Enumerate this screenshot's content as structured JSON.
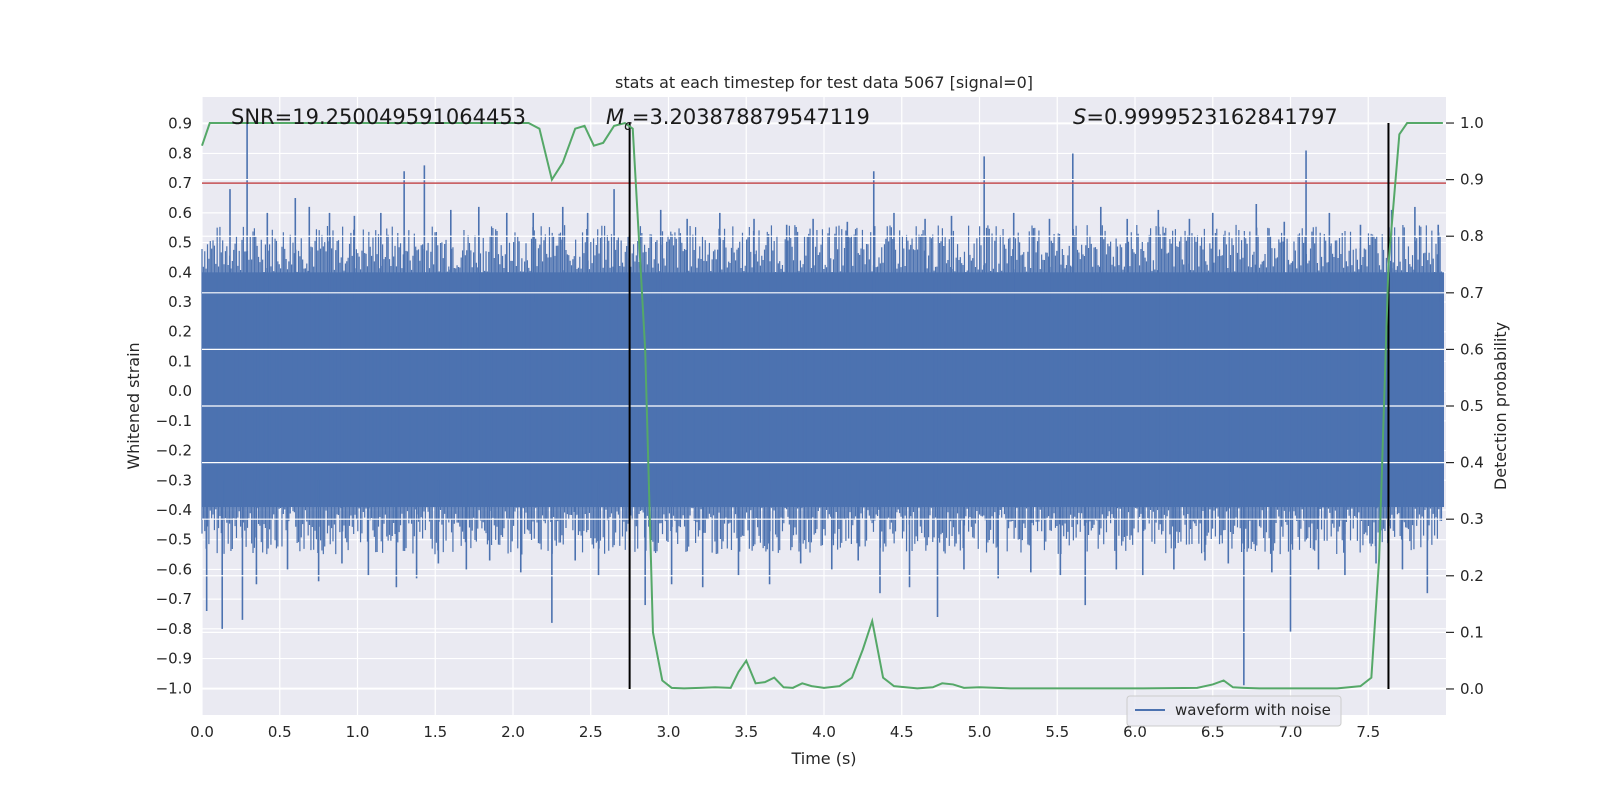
{
  "chart_data": {
    "type": "line",
    "title": "stats at each timestep for test data 5067 [signal=0]",
    "xlabel": "Time (s)",
    "ylabel": "Whitened strain",
    "y2label": "Detection probability",
    "xlim": [
      0.0,
      8.0
    ],
    "ylim": [
      -1.09,
      0.99
    ],
    "y2lim": [
      -0.046,
      1.046
    ],
    "x_ticks": [
      0.0,
      0.5,
      1.0,
      1.5,
      2.0,
      2.5,
      3.0,
      3.5,
      4.0,
      4.5,
      5.0,
      5.5,
      6.0,
      6.5,
      7.0,
      7.5
    ],
    "x_tick_labels": [
      "0.0",
      "0.5",
      "1.0",
      "1.5",
      "2.0",
      "2.5",
      "3.0",
      "3.5",
      "4.0",
      "4.5",
      "5.0",
      "5.5",
      "6.0",
      "6.5",
      "7.0",
      "7.5"
    ],
    "y_ticks": [
      0.9,
      0.8,
      0.7,
      0.6,
      0.5,
      0.4,
      0.3,
      0.2,
      0.1,
      0.0,
      -0.1,
      -0.2,
      -0.3,
      -0.4,
      -0.5,
      -0.6,
      -0.7,
      -0.8,
      -0.9,
      -1.0
    ],
    "y_tick_labels": [
      "0.9",
      "0.8",
      "0.7",
      "0.6",
      "0.5",
      "0.4",
      "0.3",
      "0.2",
      "0.1",
      "0.0",
      "−0.1",
      "−0.2",
      "−0.3",
      "−0.4",
      "−0.5",
      "−0.6",
      "−0.7",
      "−0.8",
      "−0.9",
      "−1.0"
    ],
    "y2_ticks": [
      1.0,
      0.9,
      0.8,
      0.7,
      0.6,
      0.5,
      0.4,
      0.3,
      0.2,
      0.1,
      0.0
    ],
    "y2_tick_labels": [
      "1.0",
      "0.9",
      "0.8",
      "0.7",
      "0.6",
      "0.5",
      "0.4",
      "0.3",
      "0.2",
      "0.1",
      "0.0"
    ],
    "grid": true,
    "legend": {
      "location": "lower-right",
      "entries": [
        "waveform with noise"
      ]
    },
    "annotations": [
      {
        "prefix": "SNR=",
        "value": "19.250049591064453"
      },
      {
        "prefix": "M",
        "subscript": "c",
        "suffix": "=",
        "value": "3.203878879547119"
      },
      {
        "prefix": "S",
        "suffix": "=",
        "value": "0.9999523162841797"
      }
    ],
    "threshold_line": {
      "y": 0.7,
      "color": "#c44e52"
    },
    "vertical_lines": [
      2.75,
      7.63
    ],
    "waveform": {
      "name": "waveform with noise",
      "color": "#4c72b0",
      "band_low": -0.39,
      "band_high": 0.4,
      "spikes": [
        [
          0.03,
          -0.74
        ],
        [
          0.13,
          -0.8
        ],
        [
          0.18,
          0.68
        ],
        [
          0.26,
          -0.77
        ],
        [
          0.29,
          0.9
        ],
        [
          0.35,
          -0.65
        ],
        [
          0.42,
          0.6
        ],
        [
          0.55,
          -0.6
        ],
        [
          0.6,
          0.65
        ],
        [
          0.69,
          0.62
        ],
        [
          0.75,
          -0.64
        ],
        [
          0.82,
          0.6
        ],
        [
          0.9,
          -0.58
        ],
        [
          0.98,
          0.59
        ],
        [
          1.07,
          -0.62
        ],
        [
          1.15,
          0.6
        ],
        [
          1.25,
          -0.66
        ],
        [
          1.3,
          0.74
        ],
        [
          1.38,
          -0.63
        ],
        [
          1.43,
          0.76
        ],
        [
          1.52,
          -0.58
        ],
        [
          1.6,
          0.61
        ],
        [
          1.7,
          -0.6
        ],
        [
          1.78,
          0.62
        ],
        [
          1.85,
          -0.57
        ],
        [
          1.96,
          0.6
        ],
        [
          2.05,
          -0.61
        ],
        [
          2.13,
          0.6
        ],
        [
          2.25,
          -0.78
        ],
        [
          2.32,
          0.62
        ],
        [
          2.4,
          -0.57
        ],
        [
          2.48,
          0.6
        ],
        [
          2.55,
          -0.62
        ],
        [
          2.65,
          0.68
        ],
        [
          2.85,
          -0.72
        ],
        [
          2.95,
          0.61
        ],
        [
          3.02,
          -0.65
        ],
        [
          3.12,
          0.58
        ],
        [
          3.22,
          -0.66
        ],
        [
          3.33,
          0.6
        ],
        [
          3.45,
          -0.62
        ],
        [
          3.55,
          0.58
        ],
        [
          3.65,
          -0.65
        ],
        [
          3.76,
          0.56
        ],
        [
          3.85,
          -0.58
        ],
        [
          3.93,
          0.58
        ],
        [
          4.05,
          -0.6
        ],
        [
          4.15,
          0.57
        ],
        [
          4.22,
          -0.57
        ],
        [
          4.32,
          0.74
        ],
        [
          4.36,
          -0.68
        ],
        [
          4.45,
          0.6
        ],
        [
          4.55,
          -0.66
        ],
        [
          4.65,
          0.58
        ],
        [
          4.73,
          -0.76
        ],
        [
          4.82,
          0.59
        ],
        [
          4.9,
          -0.6
        ],
        [
          5.03,
          0.79
        ],
        [
          5.12,
          -0.63
        ],
        [
          5.22,
          0.6
        ],
        [
          5.33,
          -0.61
        ],
        [
          5.45,
          0.58
        ],
        [
          5.52,
          -0.62
        ],
        [
          5.6,
          0.8
        ],
        [
          5.68,
          -0.72
        ],
        [
          5.78,
          0.62
        ],
        [
          5.88,
          -0.6
        ],
        [
          5.95,
          0.58
        ],
        [
          6.05,
          -0.62
        ],
        [
          6.15,
          0.61
        ],
        [
          6.25,
          -0.6
        ],
        [
          6.35,
          0.58
        ],
        [
          6.45,
          -0.57
        ],
        [
          6.5,
          0.6
        ],
        [
          6.6,
          -0.58
        ],
        [
          6.7,
          -0.99
        ],
        [
          6.78,
          0.63
        ],
        [
          6.88,
          -0.61
        ],
        [
          6.96,
          0.57
        ],
        [
          7.0,
          -0.81
        ],
        [
          7.1,
          0.81
        ],
        [
          7.18,
          -0.6
        ],
        [
          7.25,
          0.6
        ],
        [
          7.35,
          -0.62
        ],
        [
          7.45,
          0.56
        ],
        [
          7.55,
          -0.58
        ],
        [
          7.65,
          0.61
        ],
        [
          7.72,
          -0.6
        ],
        [
          7.8,
          0.62
        ],
        [
          7.88,
          -0.68
        ],
        [
          7.95,
          0.56
        ]
      ]
    },
    "detection_probability": {
      "color": "#55a868",
      "x": [
        0.0,
        0.05,
        0.15,
        0.5,
        1.0,
        1.5,
        2.0,
        2.1,
        2.17,
        2.25,
        2.32,
        2.4,
        2.46,
        2.52,
        2.58,
        2.65,
        2.72,
        2.77,
        2.85,
        2.9,
        2.96,
        3.02,
        3.1,
        3.2,
        3.3,
        3.4,
        3.45,
        3.5,
        3.56,
        3.62,
        3.68,
        3.74,
        3.8,
        3.86,
        3.92,
        4.0,
        4.1,
        4.18,
        4.25,
        4.31,
        4.38,
        4.45,
        4.6,
        4.7,
        4.76,
        4.83,
        4.9,
        5.0,
        5.2,
        5.6,
        6.0,
        6.4,
        6.5,
        6.57,
        6.63,
        6.7,
        6.8,
        7.0,
        7.3,
        7.45,
        7.52,
        7.57,
        7.63,
        7.7,
        7.75,
        7.8,
        7.9,
        7.98
      ],
      "y": [
        0.96,
        1.0,
        1.0,
        1.0,
        1.0,
        1.0,
        1.0,
        1.0,
        0.99,
        0.9,
        0.93,
        0.99,
        0.995,
        0.96,
        0.965,
        0.995,
        1.0,
        0.99,
        0.6,
        0.1,
        0.015,
        0.002,
        0.001,
        0.002,
        0.003,
        0.002,
        0.03,
        0.05,
        0.01,
        0.012,
        0.02,
        0.003,
        0.002,
        0.01,
        0.005,
        0.002,
        0.005,
        0.02,
        0.07,
        0.12,
        0.02,
        0.005,
        0.001,
        0.003,
        0.01,
        0.008,
        0.002,
        0.003,
        0.001,
        0.001,
        0.001,
        0.002,
        0.008,
        0.015,
        0.003,
        0.002,
        0.001,
        0.001,
        0.001,
        0.005,
        0.02,
        0.23,
        0.75,
        0.98,
        1.0,
        1.0,
        1.0,
        1.0
      ]
    }
  }
}
